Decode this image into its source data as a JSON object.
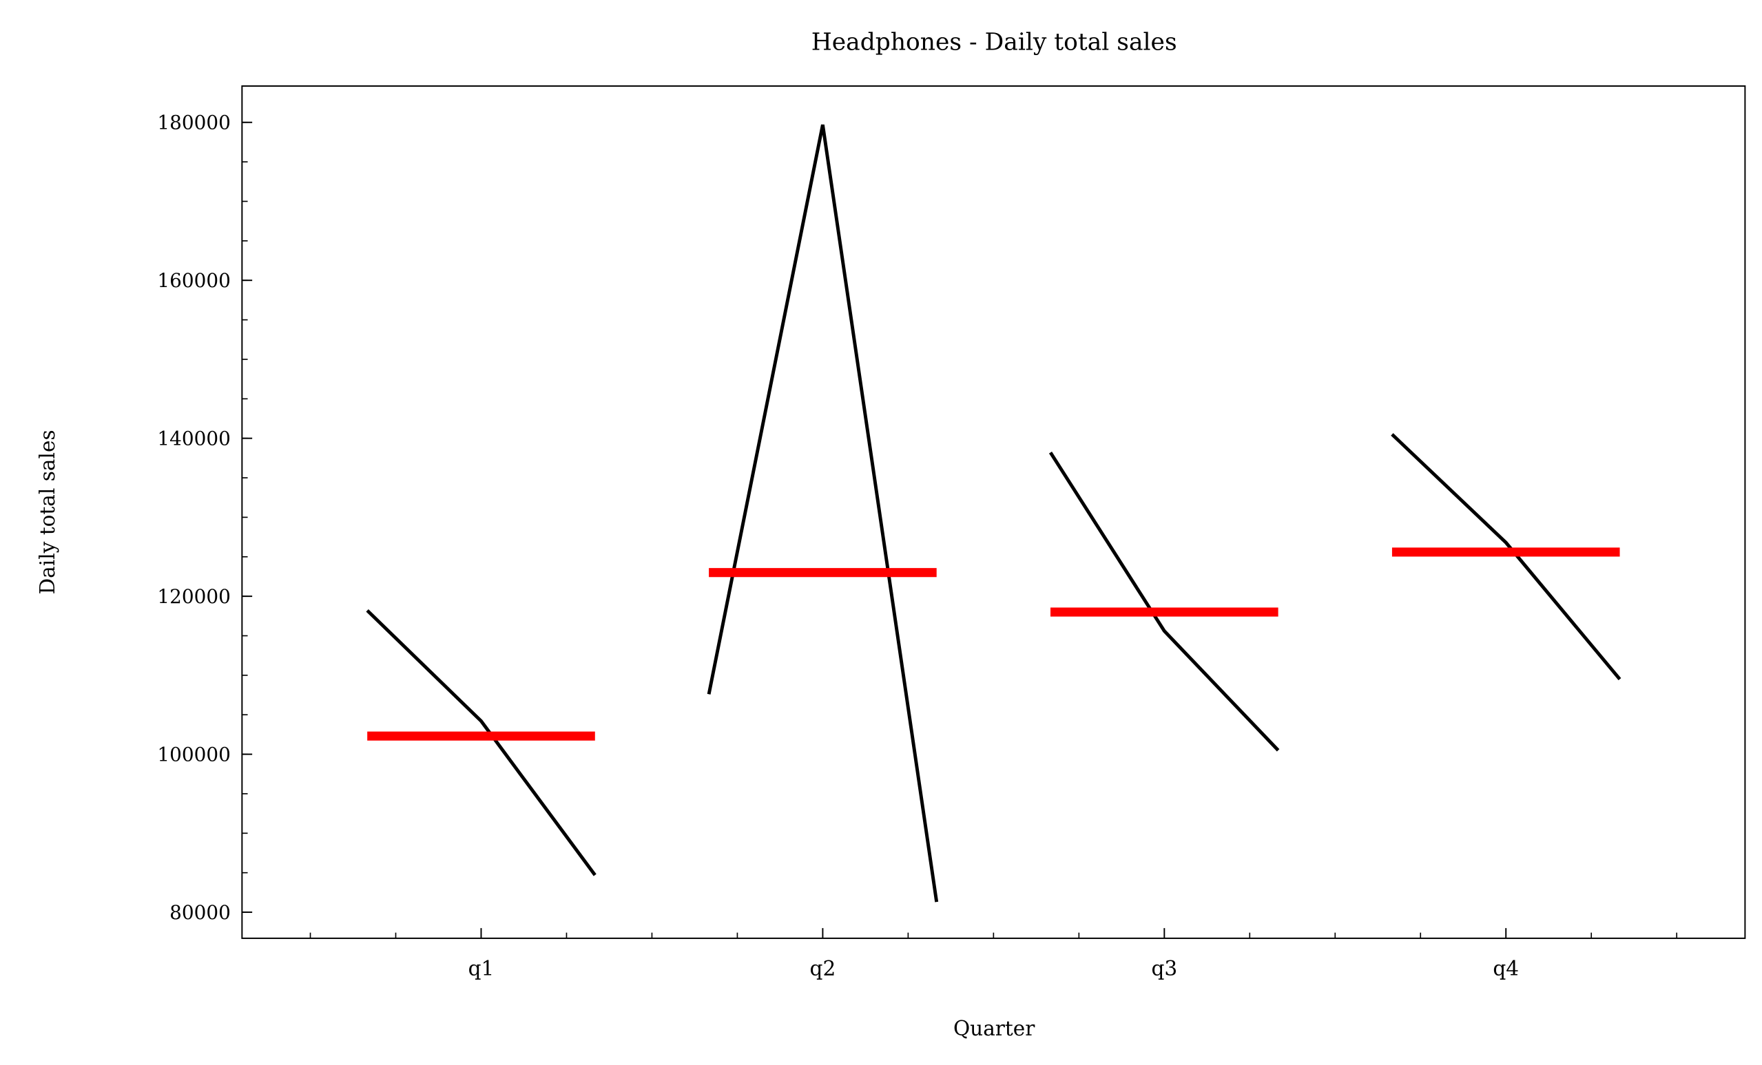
{
  "chart_data": {
    "type": "quarter_plot",
    "title": "Headphones - Daily total sales",
    "x_label": "Quarter",
    "y_label": "Daily total sales",
    "categories": [
      "q1",
      "q2",
      "q3",
      "q4"
    ],
    "values": [
      [
        118200,
        104200,
        84700
      ],
      [
        107600,
        179700,
        81300
      ],
      [
        138200,
        115600,
        100500
      ],
      [
        140500,
        126800,
        109500
      ]
    ],
    "means": [
      102300,
      123000,
      118000,
      125600
    ],
    "line_color": "#000000",
    "mean_color": "#ff0000",
    "ylim": [
      76700,
      184600
    ],
    "yticks": [
      80000,
      100000,
      120000,
      140000,
      160000,
      180000
    ]
  }
}
